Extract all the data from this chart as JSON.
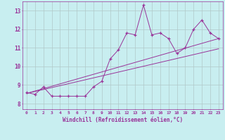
{
  "xlabel": "Windchill (Refroidissement éolien,°C)",
  "bg_color": "#c8eef0",
  "line_color": "#993399",
  "grid_color": "#b0c8c8",
  "xlim": [
    -0.5,
    23.5
  ],
  "ylim": [
    7.7,
    13.5
  ],
  "yticks": [
    8,
    9,
    10,
    11,
    12,
    13
  ],
  "xticks": [
    0,
    1,
    2,
    3,
    4,
    5,
    6,
    7,
    8,
    9,
    10,
    11,
    12,
    13,
    14,
    15,
    16,
    17,
    18,
    19,
    20,
    21,
    22,
    23
  ],
  "line1_x": [
    0,
    1,
    2,
    3,
    4,
    5,
    6,
    7,
    8,
    9,
    10,
    11,
    12,
    13,
    14,
    15,
    16,
    17,
    18,
    19,
    20,
    21,
    22,
    23
  ],
  "line1_y": [
    8.6,
    8.5,
    8.9,
    8.4,
    8.4,
    8.4,
    8.4,
    8.4,
    8.9,
    9.2,
    10.4,
    10.9,
    11.8,
    11.7,
    13.3,
    11.7,
    11.8,
    11.5,
    10.7,
    11.0,
    12.0,
    12.5,
    11.8,
    11.5
  ],
  "line2_x": [
    0,
    23
  ],
  "line2_y": [
    8.55,
    11.5
  ],
  "line3_x": [
    0,
    23
  ],
  "line3_y": [
    8.55,
    10.95
  ]
}
